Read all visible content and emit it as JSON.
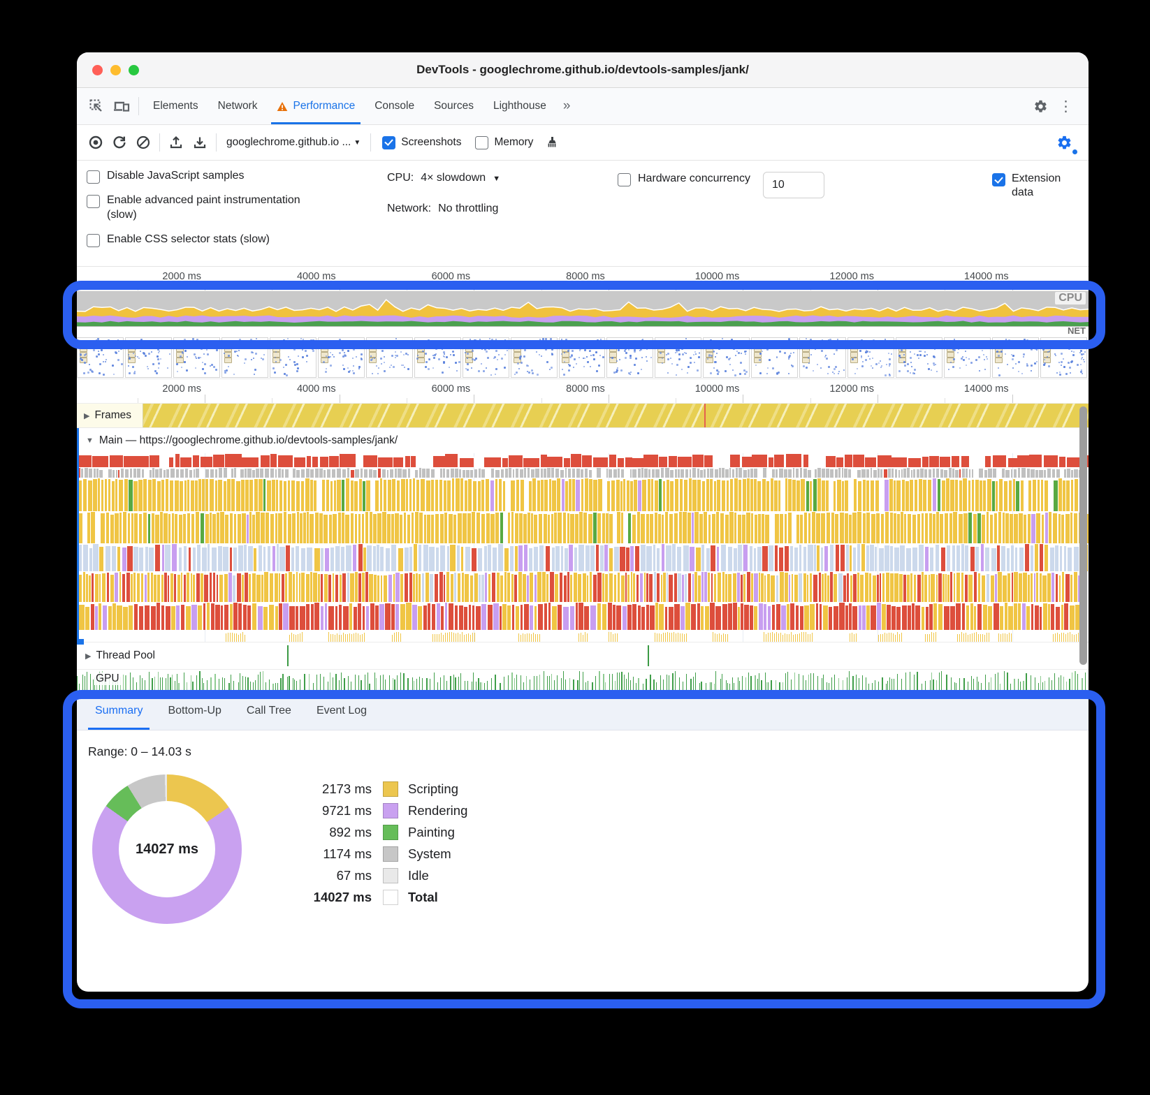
{
  "window": {
    "title": "DevTools - googlechrome.github.io/devtools-samples/jank/"
  },
  "tabs": {
    "items": [
      "Elements",
      "Network",
      "Performance",
      "Console",
      "Sources",
      "Lighthouse"
    ],
    "active": "Performance",
    "overflow": "»"
  },
  "toolbar": {
    "page_select": "googlechrome.github.io ...",
    "screenshots_label": "Screenshots",
    "memory_label": "Memory"
  },
  "settings": {
    "disable_js": "Disable JavaScript samples",
    "adv_paint": "Enable advanced paint instrumentation (slow)",
    "css_stats": "Enable CSS selector stats (slow)",
    "cpu_label": "CPU:",
    "cpu_value": "4× slowdown",
    "network_label": "Network:",
    "network_value": "No throttling",
    "hw_label": "Hardware concurrency",
    "hw_value": "10",
    "ext_label": "Extension data"
  },
  "ruler": {
    "labels": [
      "2000 ms",
      "4000 ms",
      "6000 ms",
      "8000 ms",
      "10000 ms",
      "12000 ms",
      "14000 ms"
    ]
  },
  "overview": {
    "cpu_label": "CPU",
    "net_label": "NET"
  },
  "tracks": {
    "frames_label": "Frames",
    "main_label": "Main — https://googlechrome.github.io/devtools-samples/jank/",
    "thread_pool_label": "Thread Pool",
    "gpu_label": "GPU"
  },
  "bottom_tabs": {
    "items": [
      "Summary",
      "Bottom-Up",
      "Call Tree",
      "Event Log"
    ],
    "active": "Summary"
  },
  "summary": {
    "range": "Range: 0 – 14.03 s",
    "center_label": "14027 ms",
    "rows": [
      {
        "value": "2173 ms",
        "ms": 2173,
        "label": "Scripting",
        "color": "#ecc64f"
      },
      {
        "value": "9721 ms",
        "ms": 9721,
        "label": "Rendering",
        "color": "#c9a1f0"
      },
      {
        "value": "892 ms",
        "ms": 892,
        "label": "Painting",
        "color": "#66bd59"
      },
      {
        "value": "1174 ms",
        "ms": 1174,
        "label": "System",
        "color": "#c7c7c7"
      },
      {
        "value": "67 ms",
        "ms": 67,
        "label": "Idle",
        "color": "#e9e9e9"
      }
    ],
    "total": {
      "value": "14027 ms",
      "label": "Total",
      "color": "#ffffff"
    }
  },
  "chart_data": {
    "type": "pie",
    "title": "Summary 0 – 14.03 s",
    "categories": [
      "Scripting",
      "Rendering",
      "Painting",
      "System",
      "Idle"
    ],
    "values": [
      2173,
      9721,
      892,
      1174,
      67
    ],
    "total": 14027,
    "unit": "ms",
    "legend_position": "right"
  },
  "colors": {
    "accent": "#1a73e8",
    "annotation": "#2b5ff0",
    "warning": "#e8710a",
    "flame_red": "#dd4e3c",
    "flame_gray": "#c0c0c0",
    "flame_yellow": "#f0c544",
    "flame_blue": "#ccd9ec",
    "flame_purple": "#c89ef0",
    "flame_green": "#58a942",
    "gpu_green": "#3f9e48"
  }
}
